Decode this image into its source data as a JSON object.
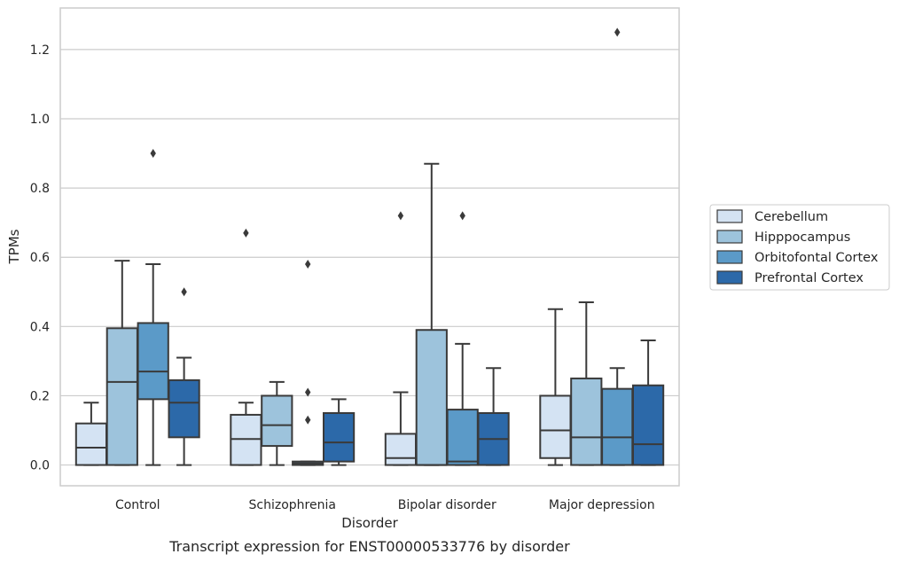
{
  "chart_data": {
    "type": "box",
    "caption": "Transcript expression for ENST00000533776 by disorder",
    "xlabel": "Disorder",
    "ylabel": "TPMs",
    "ylim": [
      -0.06,
      1.32
    ],
    "yticks": [
      "0.0",
      "0.2",
      "0.4",
      "0.6",
      "0.8",
      "1.0",
      "1.2"
    ],
    "grid": "horizontal",
    "legend_position": "right",
    "categories": [
      "Control",
      "Schizophrenia",
      "Bipolar disorder",
      "Major depression"
    ],
    "series": [
      {
        "name": "Cerebellum",
        "color": "#d4e3f3",
        "boxes": [
          {
            "whislo": 0.0,
            "q1": 0.0,
            "med": 0.05,
            "q3": 0.12,
            "whishi": 0.18,
            "fliers": []
          },
          {
            "whislo": 0.0,
            "q1": 0.0,
            "med": 0.075,
            "q3": 0.145,
            "whishi": 0.18,
            "fliers": [
              0.67
            ]
          },
          {
            "whislo": 0.0,
            "q1": 0.0,
            "med": 0.02,
            "q3": 0.09,
            "whishi": 0.21,
            "fliers": [
              0.72
            ]
          },
          {
            "whislo": 0.0,
            "q1": 0.02,
            "med": 0.1,
            "q3": 0.2,
            "whishi": 0.45,
            "fliers": []
          }
        ]
      },
      {
        "name": "Hipppocampus",
        "color": "#9dc3dc",
        "boxes": [
          {
            "whislo": 0.0,
            "q1": 0.0,
            "med": 0.24,
            "q3": 0.395,
            "whishi": 0.59,
            "fliers": []
          },
          {
            "whislo": 0.0,
            "q1": 0.055,
            "med": 0.115,
            "q3": 0.2,
            "whishi": 0.24,
            "fliers": []
          },
          {
            "whislo": 0.0,
            "q1": 0.0,
            "med": 0.0,
            "q3": 0.39,
            "whishi": 0.87,
            "fliers": []
          },
          {
            "whislo": 0.0,
            "q1": 0.0,
            "med": 0.08,
            "q3": 0.25,
            "whishi": 0.47,
            "fliers": []
          }
        ]
      },
      {
        "name": "Orbitofontal Cortex",
        "color": "#5b9ac8",
        "boxes": [
          {
            "whislo": 0.0,
            "q1": 0.19,
            "med": 0.27,
            "q3": 0.41,
            "whishi": 0.58,
            "fliers": [
              0.9
            ]
          },
          {
            "whislo": 0.0,
            "q1": 0.0,
            "med": 0.005,
            "q3": 0.01,
            "whishi": 0.01,
            "fliers": [
              0.58,
              0.21,
              0.13
            ]
          },
          {
            "whislo": 0.0,
            "q1": 0.0,
            "med": 0.01,
            "q3": 0.16,
            "whishi": 0.35,
            "fliers": [
              0.72
            ]
          },
          {
            "whislo": 0.0,
            "q1": 0.0,
            "med": 0.08,
            "q3": 0.22,
            "whishi": 0.28,
            "fliers": [
              1.25
            ]
          }
        ]
      },
      {
        "name": "Prefrontal Cortex",
        "color": "#2c69a9",
        "boxes": [
          {
            "whislo": 0.0,
            "q1": 0.08,
            "med": 0.18,
            "q3": 0.245,
            "whishi": 0.31,
            "fliers": [
              0.5
            ]
          },
          {
            "whislo": 0.0,
            "q1": 0.01,
            "med": 0.065,
            "q3": 0.15,
            "whishi": 0.19,
            "fliers": []
          },
          {
            "whislo": 0.0,
            "q1": 0.0,
            "med": 0.075,
            "q3": 0.15,
            "whishi": 0.28,
            "fliers": []
          },
          {
            "whislo": 0.0,
            "q1": 0.0,
            "med": 0.06,
            "q3": 0.23,
            "whishi": 0.36,
            "fliers": []
          }
        ]
      }
    ]
  }
}
